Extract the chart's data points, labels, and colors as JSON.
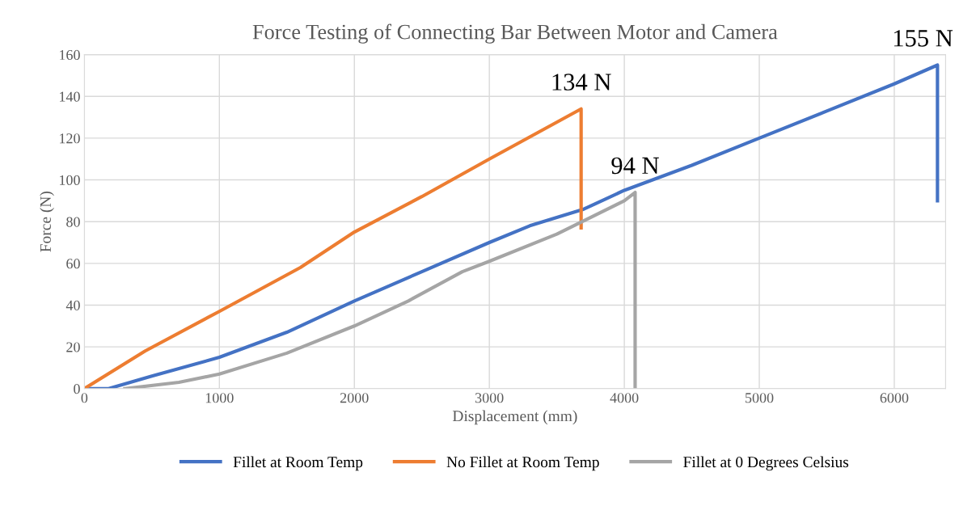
{
  "chart_data": {
    "type": "line",
    "title": "Force Testing of Connecting Bar Between Motor and Camera",
    "xlabel": "Displacement (mm)",
    "ylabel": "Force (N)",
    "series": [
      {
        "name": "Fillet at Room Temp",
        "color": "#4472c4",
        "x": [
          0,
          180,
          500,
          1000,
          1500,
          2000,
          2500,
          3000,
          3300,
          3700,
          4000,
          4500,
          5000,
          5500,
          6000,
          6320,
          6320
        ],
        "values": [
          0,
          0,
          6,
          15,
          27,
          42,
          56,
          70,
          78,
          86,
          95,
          107,
          120,
          133,
          146,
          155,
          90
        ]
      },
      {
        "name": "No Fillet at Room Temp",
        "color": "#ed7d31",
        "x": [
          0,
          450,
          1000,
          1600,
          2000,
          2500,
          3000,
          3680,
          3680
        ],
        "values": [
          0,
          18,
          37,
          58,
          75,
          92,
          110,
          134,
          77
        ]
      },
      {
        "name": "Fillet at 0 Degrees Celsius",
        "color": "#a5a5a5",
        "x": [
          300,
          700,
          1000,
          1500,
          2000,
          2400,
          2800,
          3000,
          3500,
          4000,
          4080,
          4080
        ],
        "values": [
          0,
          3,
          7,
          17,
          30,
          42,
          56,
          61,
          74,
          90,
          94,
          0
        ]
      }
    ],
    "annotations": [
      {
        "text": "155 N",
        "x": 6320,
        "y": 155
      },
      {
        "text": "134 N",
        "x": 3680,
        "y": 134
      },
      {
        "text": "94 N",
        "x": 4080,
        "y": 94
      }
    ],
    "xlim": [
      0,
      6380
    ],
    "xticks": [
      0,
      1000,
      2000,
      3000,
      4000,
      5000,
      6000
    ],
    "ylim": [
      0,
      160
    ],
    "yticks": [
      0,
      20,
      40,
      60,
      80,
      100,
      120,
      140,
      160
    ],
    "grid": true,
    "legend": "bottom",
    "marker": "none",
    "line_style": "solid"
  }
}
